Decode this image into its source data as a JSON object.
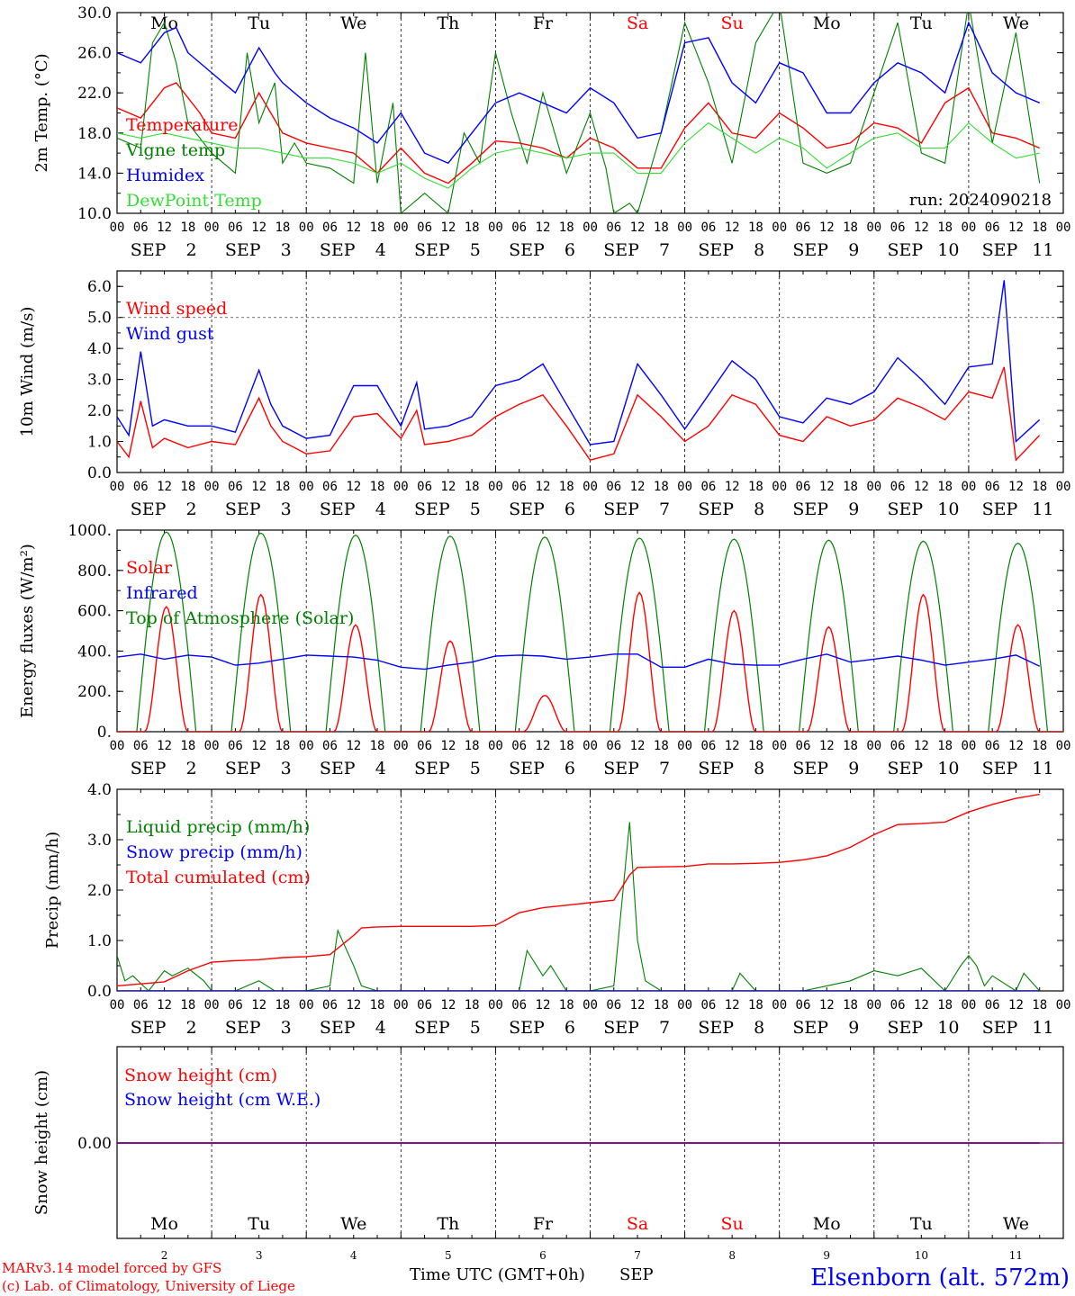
{
  "colors": {
    "red": "#ff0000",
    "green": "#008000",
    "blue": "#0000ff",
    "lightgreen": "#33dd33",
    "purple": "#800080",
    "axis": "#000000"
  },
  "days": [
    {
      "dow": "Mo",
      "day": "2",
      "weekend": false
    },
    {
      "dow": "Tu",
      "day": "3",
      "weekend": false
    },
    {
      "dow": "We",
      "day": "4",
      "weekend": false
    },
    {
      "dow": "Th",
      "day": "5",
      "weekend": false
    },
    {
      "dow": "Fr",
      "day": "6",
      "weekend": false
    },
    {
      "dow": "Sa",
      "day": "7",
      "weekend": true
    },
    {
      "dow": "Su",
      "day": "8",
      "weekend": true
    },
    {
      "dow": "Mo",
      "day": "9",
      "weekend": false
    },
    {
      "dow": "Tu",
      "day": "10",
      "weekend": false
    },
    {
      "dow": "We",
      "day": "11",
      "weekend": false
    }
  ],
  "hour_ticks": [
    "00",
    "06",
    "12",
    "18"
  ],
  "end_tick": "00",
  "month_label": "SEP",
  "run_label": "run: 2024090218",
  "footer": {
    "model": "MARv3.14 model forced by GFS",
    "copyright": "(c) Lab. of Climatology, University of Liege",
    "time_axis": "Time UTC (GMT+0h)",
    "month": "SEP",
    "station": "Elsenborn (alt. 572m)"
  },
  "chart_data": [
    {
      "type": "line",
      "ylabel": "2m Temp. (°C)",
      "ylim": [
        10,
        30
      ],
      "yticks": [
        "10.0",
        "14.0",
        "18.0",
        "22.0",
        "26.0",
        "30.0"
      ],
      "ytick_values": [
        10,
        14,
        18,
        22,
        26,
        30
      ],
      "x_unit": "hours since SEP 2 00 UTC",
      "legend": [
        "Temperature",
        "Vigne temp",
        "Humidex",
        "DewPoint Temp"
      ],
      "series": [
        {
          "name": "Temperature",
          "color": "#ff0000",
          "x": [
            0,
            6,
            12,
            15,
            21,
            24,
            30,
            36,
            42,
            48,
            54,
            60,
            66,
            72,
            78,
            84,
            90,
            96,
            102,
            108,
            114,
            120,
            126,
            132,
            138,
            144,
            150,
            156,
            162,
            168,
            174,
            180,
            186,
            192,
            198,
            204,
            210,
            216,
            222,
            228,
            234
          ],
          "y": [
            20.5,
            19.5,
            22.5,
            23,
            20,
            18,
            17.5,
            22,
            18,
            17,
            16.5,
            16,
            14,
            16.5,
            14,
            13,
            15,
            17.2,
            17,
            16.5,
            15.5,
            17.5,
            16.5,
            14.5,
            14.5,
            18.5,
            21,
            18,
            17.5,
            20,
            18.5,
            16.5,
            17,
            19,
            18.5,
            17,
            21,
            22.5,
            18,
            17.5,
            16.5
          ]
        },
        {
          "name": "Vigne temp",
          "color": "#008000",
          "x": [
            0,
            6,
            9,
            12,
            15,
            18,
            24,
            30,
            33,
            36,
            40,
            42,
            45,
            48,
            54,
            60,
            63,
            66,
            70,
            72,
            78,
            84,
            88,
            92,
            96,
            100,
            104,
            108,
            114,
            120,
            124,
            126,
            130,
            132,
            138,
            144,
            150,
            156,
            162,
            168,
            174,
            180,
            186,
            192,
            198,
            204,
            210,
            216,
            222,
            228,
            234
          ],
          "y": [
            17.5,
            16.5,
            27,
            29,
            25,
            19,
            16,
            14,
            26,
            19,
            23,
            15,
            17,
            15,
            14.5,
            13,
            26,
            13,
            21,
            10,
            12,
            10,
            18,
            15,
            26,
            20,
            15,
            22,
            14,
            20,
            14.5,
            10,
            11,
            10,
            18,
            29,
            23,
            15,
            27,
            31,
            15,
            14,
            15,
            22,
            29,
            16,
            15,
            31,
            17,
            28,
            13
          ]
        },
        {
          "name": "Humidex",
          "color": "#0000ff",
          "x": [
            0,
            6,
            12,
            15,
            18,
            24,
            30,
            36,
            40,
            42,
            48,
            54,
            60,
            66,
            72,
            78,
            84,
            90,
            96,
            102,
            108,
            114,
            120,
            126,
            132,
            138,
            144,
            150,
            156,
            162,
            168,
            174,
            180,
            186,
            192,
            198,
            204,
            210,
            216,
            222,
            228,
            234
          ],
          "y": [
            26,
            25,
            28,
            28.5,
            26,
            24,
            22,
            26.5,
            24,
            23,
            21,
            19.5,
            18.5,
            17,
            20,
            16,
            15,
            18,
            21,
            22,
            21,
            20,
            22.5,
            21,
            17.5,
            18,
            27,
            27.5,
            23,
            21,
            25,
            24,
            20,
            20,
            23,
            25,
            24,
            22,
            29,
            24,
            22,
            21
          ]
        },
        {
          "name": "DewPoint Temp",
          "color": "#33dd33",
          "x": [
            0,
            6,
            12,
            18,
            24,
            30,
            36,
            42,
            48,
            54,
            60,
            66,
            72,
            78,
            84,
            90,
            96,
            102,
            108,
            114,
            120,
            126,
            132,
            138,
            144,
            150,
            156,
            162,
            168,
            174,
            180,
            186,
            192,
            198,
            204,
            210,
            216,
            222,
            228,
            234
          ],
          "y": [
            18,
            17.5,
            18,
            17.5,
            17,
            16.5,
            16.5,
            16,
            15.5,
            15.5,
            15,
            14,
            15,
            13.5,
            12.5,
            14.5,
            16,
            16.5,
            16,
            15.5,
            16,
            16,
            14,
            14,
            17,
            19,
            17.5,
            16,
            17.5,
            16.5,
            14.5,
            16,
            17.5,
            18,
            16.5,
            16.5,
            19,
            17,
            15.5,
            16
          ]
        }
      ]
    },
    {
      "type": "line",
      "ylabel": "10m Wind (m/s)",
      "ylim": [
        0,
        6.5
      ],
      "yticks": [
        "0.0",
        "1.0",
        "2.0",
        "3.0",
        "4.0",
        "5.0",
        "6.0"
      ],
      "ytick_values": [
        0,
        1,
        2,
        3,
        4,
        5,
        6
      ],
      "ref_line": 5,
      "legend": [
        "Wind speed",
        "Wind gust"
      ],
      "series": [
        {
          "name": "Wind speed",
          "color": "#ff0000",
          "x": [
            0,
            3,
            6,
            9,
            12,
            18,
            24,
            30,
            36,
            39,
            42,
            48,
            54,
            60,
            66,
            72,
            76,
            78,
            84,
            90,
            96,
            102,
            108,
            114,
            120,
            126,
            132,
            138,
            144,
            150,
            156,
            162,
            168,
            174,
            180,
            186,
            192,
            198,
            204,
            210,
            216,
            222,
            225,
            228,
            234
          ],
          "y": [
            1.0,
            0.5,
            2.3,
            0.8,
            1.1,
            0.8,
            1.0,
            0.9,
            2.4,
            1.5,
            1.0,
            0.6,
            0.7,
            1.8,
            1.9,
            1.1,
            2.0,
            0.9,
            1.0,
            1.2,
            1.8,
            2.2,
            2.5,
            1.5,
            0.4,
            0.6,
            2.5,
            1.8,
            1.0,
            1.5,
            2.5,
            2.2,
            1.2,
            1.0,
            1.8,
            1.5,
            1.7,
            2.4,
            2.1,
            1.7,
            2.6,
            2.4,
            3.4,
            0.4,
            1.2
          ]
        },
        {
          "name": "Wind gust",
          "color": "#0000ff",
          "x": [
            0,
            3,
            6,
            9,
            12,
            18,
            24,
            30,
            36,
            39,
            42,
            48,
            54,
            60,
            66,
            72,
            76,
            78,
            84,
            90,
            96,
            102,
            108,
            114,
            120,
            126,
            132,
            138,
            144,
            150,
            156,
            162,
            168,
            174,
            180,
            186,
            192,
            198,
            204,
            210,
            216,
            222,
            225,
            228,
            234
          ],
          "y": [
            1.8,
            1.2,
            3.9,
            1.5,
            1.7,
            1.5,
            1.5,
            1.3,
            3.3,
            2.2,
            1.5,
            1.1,
            1.2,
            2.8,
            2.8,
            1.5,
            2.9,
            1.4,
            1.5,
            1.8,
            2.8,
            3.0,
            3.5,
            2.2,
            0.9,
            1.0,
            3.5,
            2.5,
            1.4,
            2.5,
            3.6,
            3.0,
            1.8,
            1.6,
            2.4,
            2.2,
            2.6,
            3.7,
            3.0,
            2.2,
            3.4,
            3.5,
            6.2,
            1.0,
            1.7
          ]
        }
      ]
    },
    {
      "type": "line",
      "ylabel": "Energy fluxes (W/m²)",
      "ylim": [
        0,
        1000
      ],
      "yticks": [
        "0.",
        "200.",
        "400.",
        "600.",
        "800.",
        "1000."
      ],
      "ytick_values": [
        0,
        200,
        400,
        600,
        800,
        1000
      ],
      "legend": [
        "Solar",
        "Infrared",
        "Top of Atmosphere (Solar)"
      ],
      "daily_peaks": {
        "solar": [
          620,
          680,
          530,
          450,
          180,
          690,
          600,
          520,
          680,
          530
        ],
        "toa": [
          990,
          985,
          975,
          970,
          965,
          960,
          955,
          950,
          945,
          935
        ]
      },
      "series": [
        {
          "name": "Infrared",
          "color": "#0000ff",
          "x": [
            0,
            6,
            12,
            18,
            24,
            30,
            36,
            42,
            48,
            54,
            60,
            66,
            72,
            78,
            84,
            90,
            96,
            102,
            108,
            114,
            120,
            126,
            132,
            138,
            144,
            150,
            156,
            162,
            168,
            174,
            180,
            186,
            192,
            198,
            204,
            210,
            216,
            222,
            228,
            234
          ],
          "y": [
            370,
            385,
            360,
            380,
            370,
            330,
            340,
            360,
            380,
            375,
            370,
            355,
            320,
            310,
            330,
            345,
            375,
            380,
            375,
            360,
            370,
            385,
            385,
            320,
            320,
            360,
            335,
            330,
            330,
            360,
            385,
            345,
            360,
            375,
            355,
            330,
            345,
            360,
            380,
            325
          ]
        }
      ]
    },
    {
      "type": "line",
      "ylabel": "Precip (mm/h)",
      "ylim": [
        0,
        4
      ],
      "yticks": [
        "0.0",
        "1.0",
        "2.0",
        "3.0",
        "4.0"
      ],
      "ytick_values": [
        0,
        1,
        2,
        3,
        4
      ],
      "legend": [
        "Liquid precip (mm/h)",
        "Snow precip (mm/h)",
        "Total cumulated (cm)"
      ],
      "series": [
        {
          "name": "Liquid precip (mm/h)",
          "color": "#008000",
          "x": [
            0,
            2,
            4,
            8,
            12,
            14,
            18,
            22,
            24,
            30,
            36,
            40,
            42,
            48,
            54,
            56,
            60,
            62,
            66,
            72,
            78,
            84,
            90,
            96,
            102,
            104,
            108,
            110,
            114,
            120,
            126,
            130,
            132,
            134,
            138,
            144,
            150,
            156,
            158,
            162,
            168,
            174,
            180,
            186,
            192,
            198,
            204,
            210,
            214,
            216,
            218,
            220,
            222,
            228,
            230,
            234
          ],
          "y": [
            0.7,
            0.2,
            0.3,
            0,
            0.4,
            0.3,
            0.45,
            0.2,
            0,
            0,
            0.2,
            0,
            0,
            0,
            0.1,
            1.2,
            0.5,
            0.1,
            0,
            0,
            0,
            0,
            0,
            0,
            0,
            0.8,
            0.3,
            0.5,
            0,
            0,
            0.1,
            3.35,
            1.0,
            0.2,
            0,
            0,
            0,
            0,
            0.35,
            0,
            0,
            0,
            0.1,
            0.2,
            0.4,
            0.3,
            0.45,
            0,
            0.5,
            0.7,
            0.5,
            0.1,
            0.3,
            0,
            0.35,
            0
          ]
        },
        {
          "name": "Snow precip (mm/h)",
          "color": "#0000ff",
          "x": [
            0,
            234
          ],
          "y": [
            0,
            0
          ]
        },
        {
          "name": "Total cumulated (cm)",
          "color": "#ff0000",
          "x": [
            0,
            12,
            18,
            24,
            30,
            36,
            42,
            48,
            54,
            60,
            62,
            66,
            72,
            84,
            90,
            96,
            102,
            108,
            114,
            120,
            126,
            130,
            132,
            138,
            144,
            150,
            156,
            162,
            168,
            174,
            180,
            186,
            192,
            198,
            204,
            210,
            216,
            222,
            228,
            234
          ],
          "y": [
            0.1,
            0.18,
            0.4,
            0.57,
            0.6,
            0.62,
            0.66,
            0.68,
            0.72,
            1.1,
            1.25,
            1.27,
            1.28,
            1.28,
            1.28,
            1.3,
            1.55,
            1.65,
            1.7,
            1.75,
            1.8,
            2.3,
            2.45,
            2.46,
            2.47,
            2.52,
            2.52,
            2.53,
            2.55,
            2.6,
            2.68,
            2.85,
            3.1,
            3.3,
            3.32,
            3.35,
            3.55,
            3.7,
            3.82,
            3.9
          ]
        }
      ]
    },
    {
      "type": "line",
      "ylabel": "Snow height (cm)",
      "yticks": [
        "0.00"
      ],
      "ytick_values": [
        0
      ],
      "legend": [
        "Snow height (cm)",
        "Snow height (cm W.E.)"
      ],
      "series": [
        {
          "name": "Snow height (cm)",
          "color": "#ff0000",
          "x": [
            0,
            234
          ],
          "y": [
            0,
            0
          ]
        },
        {
          "name": "Snow height (cm W.E.)",
          "color": "#0000ff",
          "x": [
            0,
            234
          ],
          "y": [
            0,
            0
          ]
        }
      ]
    }
  ]
}
